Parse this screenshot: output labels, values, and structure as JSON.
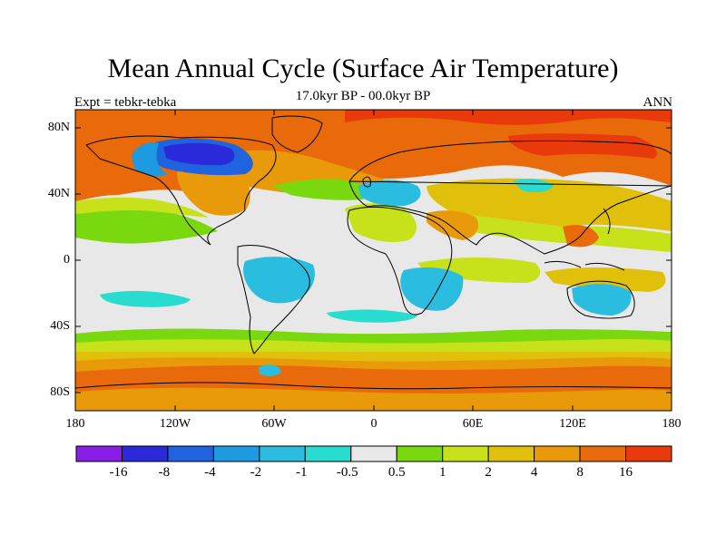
{
  "title": "Mean Annual Cycle (Surface Air Temperature)",
  "subtitle": "17.0kyr BP - 00.0kyr BP",
  "left_string": "Expt = tebkr-tebka",
  "right_string": "ANN",
  "axes": {
    "lat_labels": [
      "80N",
      "40N",
      "0",
      "40S",
      "80S"
    ],
    "lat_values": [
      80,
      40,
      0,
      -40,
      -80
    ],
    "lon_labels": [
      "180",
      "120W",
      "60W",
      "0",
      "60E",
      "120E",
      "180"
    ],
    "lon_values": [
      -180,
      -120,
      -60,
      0,
      60,
      120,
      180
    ]
  },
  "colorbar": {
    "labels": [
      "-16",
      "-8",
      "-4",
      "-2",
      "-1",
      "-0.5",
      "0.5",
      "1",
      "2",
      "4",
      "8",
      "16"
    ],
    "colors": [
      "#8a1de8",
      "#2a2adb",
      "#1f64de",
      "#1e9be0",
      "#2bbde0",
      "#28dcd0",
      "#e8e8e8",
      "#7ad80e",
      "#c7e21a",
      "#e0c00a",
      "#e89a0a",
      "#e86a0a",
      "#e83a0a"
    ]
  },
  "colors": {
    "land_outline": "#000000",
    "neutral": "#e8e8e8",
    "warm_low": "#7ad80e",
    "warm_mid": "#c7e21a",
    "warm_high": "#e0c00a",
    "warm_higher": "#e89a0a",
    "warm_max": "#e86a0a",
    "hot": "#e83a0a",
    "cool_low": "#28dcd0",
    "cool_mid": "#2bbde0",
    "cool_high": "#1e9be0",
    "cold": "#1f64de",
    "colder": "#2a2adb"
  }
}
